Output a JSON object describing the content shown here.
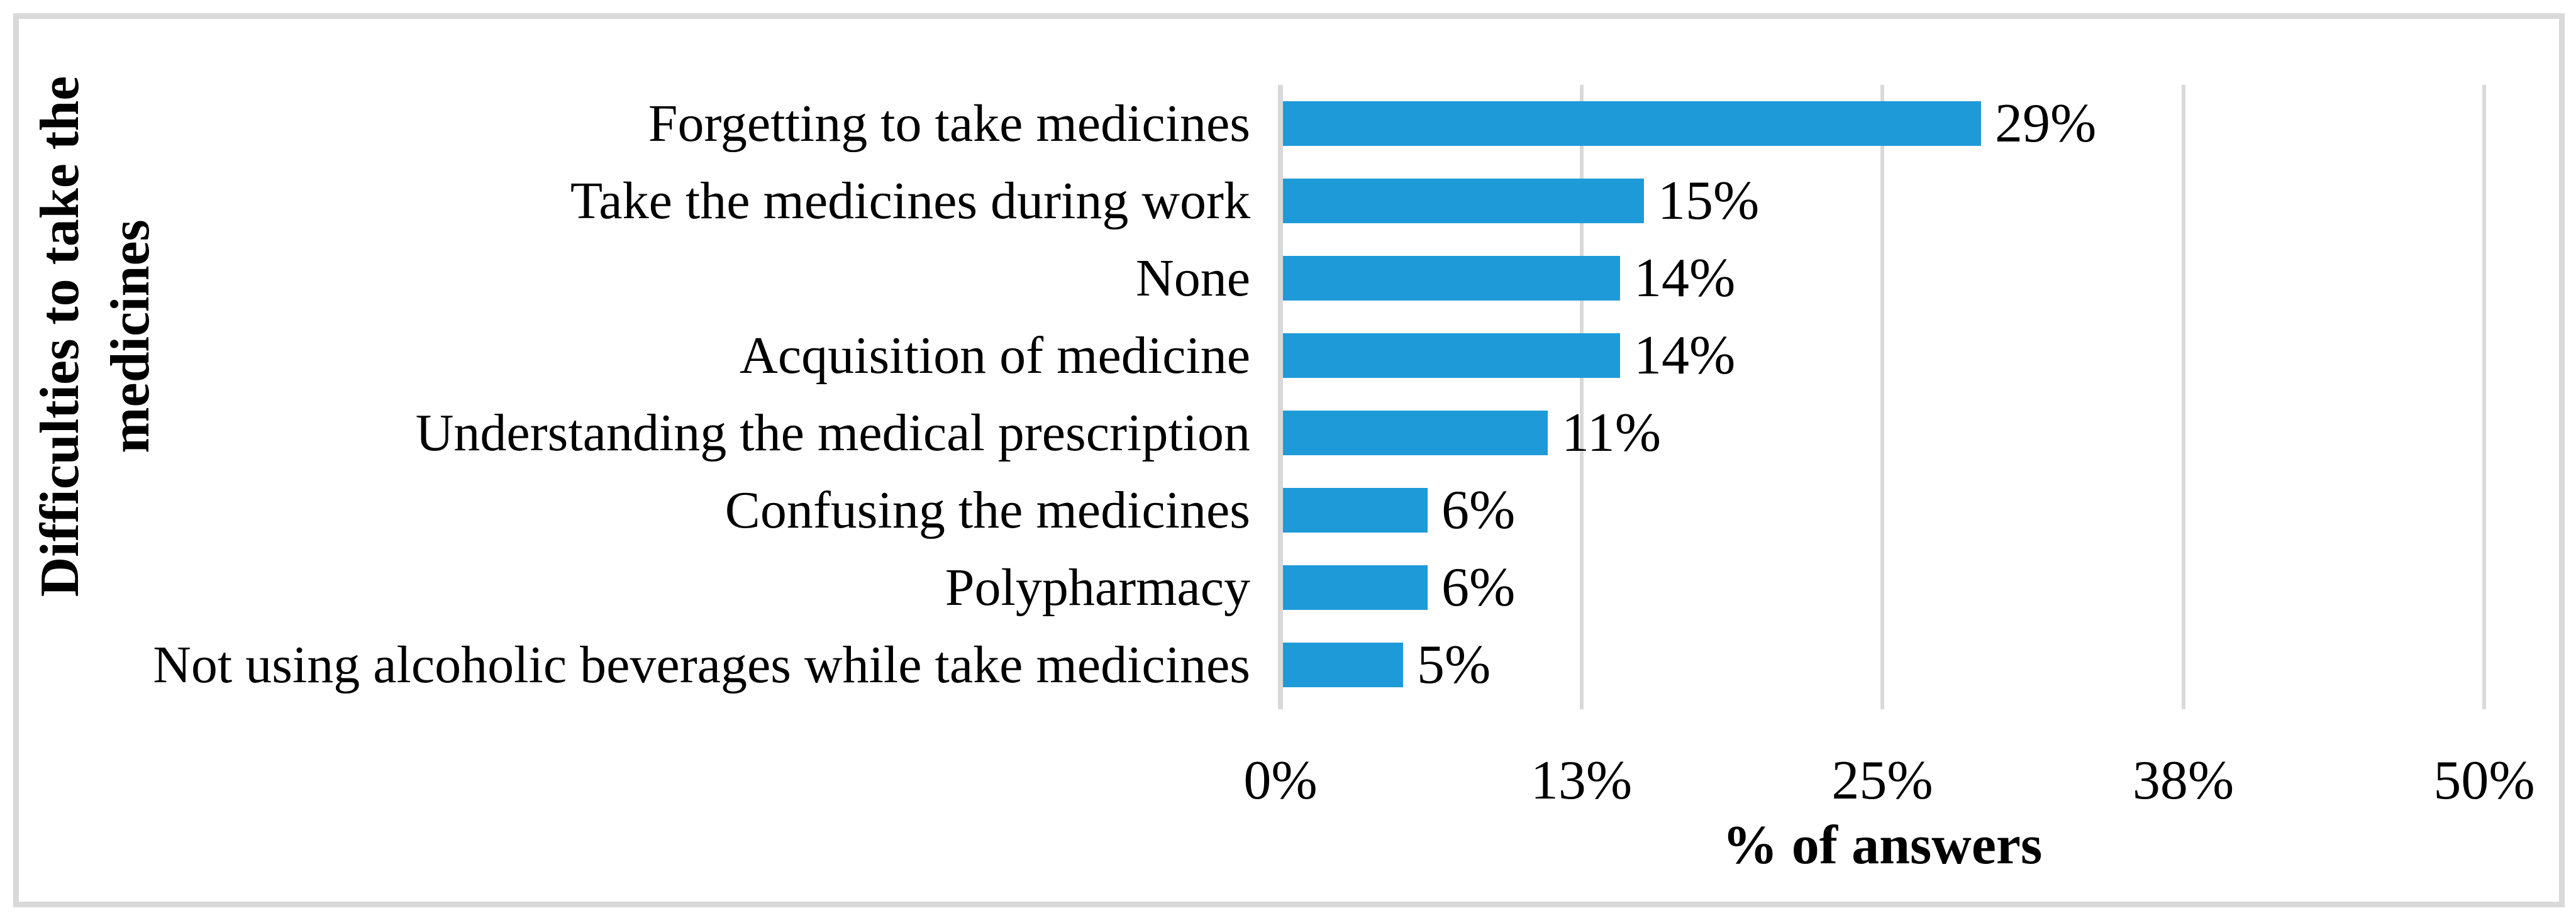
{
  "chart_data": {
    "type": "bar",
    "orientation": "horizontal",
    "title": "",
    "xlabel": "% of answers",
    "ylabel": "Difficulties to take the medicines",
    "ylabel_lines": [
      "Difficulties to take the",
      "medicines"
    ],
    "categories": [
      "Forgetting to take medicines",
      "Take the medicines during work",
      "None",
      "Acquisition of medicine",
      "Understanding the medical prescription",
      "Confusing the medicines",
      "Polypharmacy",
      "Not using alcoholic beverages while take medicines"
    ],
    "values": [
      29,
      15,
      14,
      14,
      11,
      6,
      6,
      5
    ],
    "value_labels": [
      "29%",
      "15%",
      "14%",
      "14%",
      "11%",
      "6%",
      "6%",
      "5%"
    ],
    "x_ticks": [
      "0%",
      "13%",
      "25%",
      "38%",
      "50%"
    ],
    "x_tick_values": [
      0,
      12.5,
      25,
      37.5,
      50
    ],
    "xlim": [
      0,
      50
    ],
    "grid": "vertical",
    "legend": "none",
    "bar_color": "#1f9ad8",
    "gridline_color": "#d9d9d9",
    "frame_color": "#d9d9d9",
    "text_color": "#000000"
  }
}
